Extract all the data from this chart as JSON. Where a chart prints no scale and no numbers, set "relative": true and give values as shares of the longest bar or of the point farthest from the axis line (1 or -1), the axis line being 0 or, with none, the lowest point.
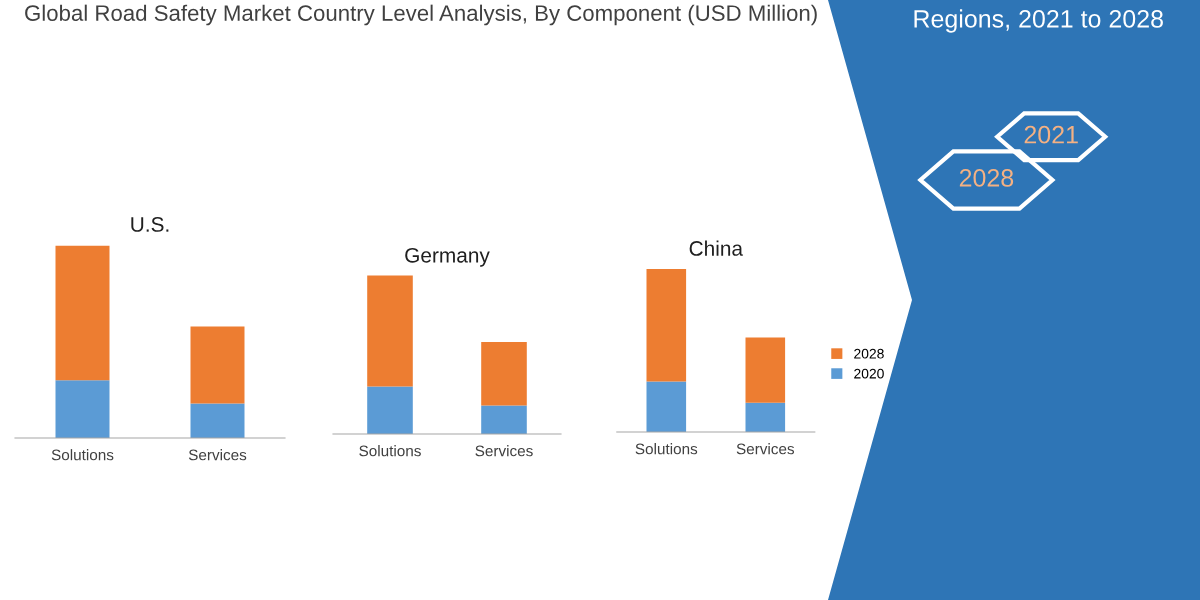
{
  "chart_data": [
    {
      "type": "other",
      "title": "Global Road Safety Market Country Level Analysis, By Component (USD Million)",
      "annotations": [
        "Regions, 2021 to 2028",
        "2021",
        "2028"
      ]
    },
    {
      "type": "bar",
      "title": "U.S.",
      "stacked": true,
      "relative": true,
      "categories": [
        "Solutions",
        "Services"
      ],
      "series": [
        {
          "color": "#5b9bd5",
          "values": [
            0.3,
            0.18
          ]
        },
        {
          "color": "#ed7d31",
          "values": [
            0.7,
            0.4
          ]
        }
      ]
    },
    {
      "type": "bar",
      "title": "Germany",
      "stacked": true,
      "relative": true,
      "categories": [
        "Solutions",
        "Services"
      ],
      "series": [
        {
          "color": "#5b9bd5",
          "values": [
            0.3,
            0.18
          ]
        },
        {
          "color": "#ed7d31",
          "values": [
            0.7,
            0.4
          ]
        }
      ]
    },
    {
      "type": "bar",
      "title": "China",
      "stacked": true,
      "relative": true,
      "categories": [
        "Solutions",
        "Services"
      ],
      "series": [
        {
          "name": "2020",
          "color": "#5b9bd5",
          "values": [
            0.31,
            0.18
          ]
        },
        {
          "name": "2028",
          "color": "#ed7d31",
          "values": [
            0.69,
            0.4
          ]
        }
      ],
      "legend": "right"
    }
  ]
}
